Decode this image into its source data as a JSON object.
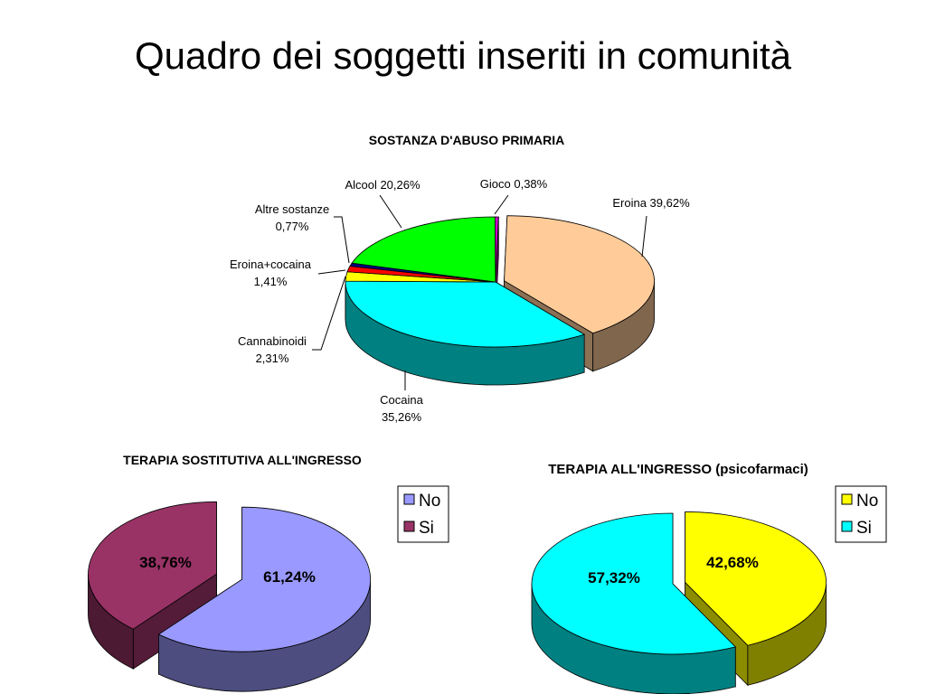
{
  "slide": {
    "title": "Quadro dei soggetti inseriti in comunità"
  },
  "chart_data": [
    {
      "type": "pie",
      "title": "SOSTANZA D'ABUSO PRIMARIA",
      "slices": [
        {
          "name": "Eroina",
          "value": 39.62,
          "label": "Eroina 39,62%",
          "color": "#FFCC99",
          "exploded": true
        },
        {
          "name": "Cocaina",
          "value": 35.26,
          "label": "Cocaina 35,26%",
          "color": "#00FFFF",
          "exploded": false
        },
        {
          "name": "Cannabinoidi",
          "value": 2.31,
          "label": "Cannabinoidi 2,31%",
          "color": "#FFFF00",
          "exploded": false
        },
        {
          "name": "Eroina+cocaina",
          "value": 1.41,
          "label": "Eroina+cocaina 1,41%",
          "color": "#FF0000",
          "exploded": false
        },
        {
          "name": "Altre sostanze",
          "value": 0.77,
          "label": "Altre sostanze 0,77%",
          "color": "#000080",
          "exploded": false
        },
        {
          "name": "Alcool",
          "value": 20.26,
          "label": "Alcool 20,26%",
          "color": "#00FF00",
          "exploded": false
        },
        {
          "name": "Gioco",
          "value": 0.38,
          "label": "Gioco 0,38%",
          "color": "#CC00CC",
          "exploded": false
        }
      ]
    },
    {
      "type": "pie",
      "title": "TERAPIA SOSTITUTIVA ALL'INGRESSO",
      "legend_position": "right",
      "slices": [
        {
          "name": "No",
          "value": 61.24,
          "label": "61,24%",
          "color": "#9999FF"
        },
        {
          "name": "Si",
          "value": 38.76,
          "label": "38,76%",
          "color": "#993366"
        }
      ]
    },
    {
      "type": "pie",
      "title": "TERAPIA ALL'INGRESSO (psicofarmaci)",
      "legend_position": "right",
      "slices": [
        {
          "name": "No",
          "value": 42.68,
          "label": "42,68%",
          "color": "#FFFF00"
        },
        {
          "name": "Si",
          "value": 57.32,
          "label": "57,32%",
          "color": "#00FFFF"
        }
      ]
    }
  ]
}
